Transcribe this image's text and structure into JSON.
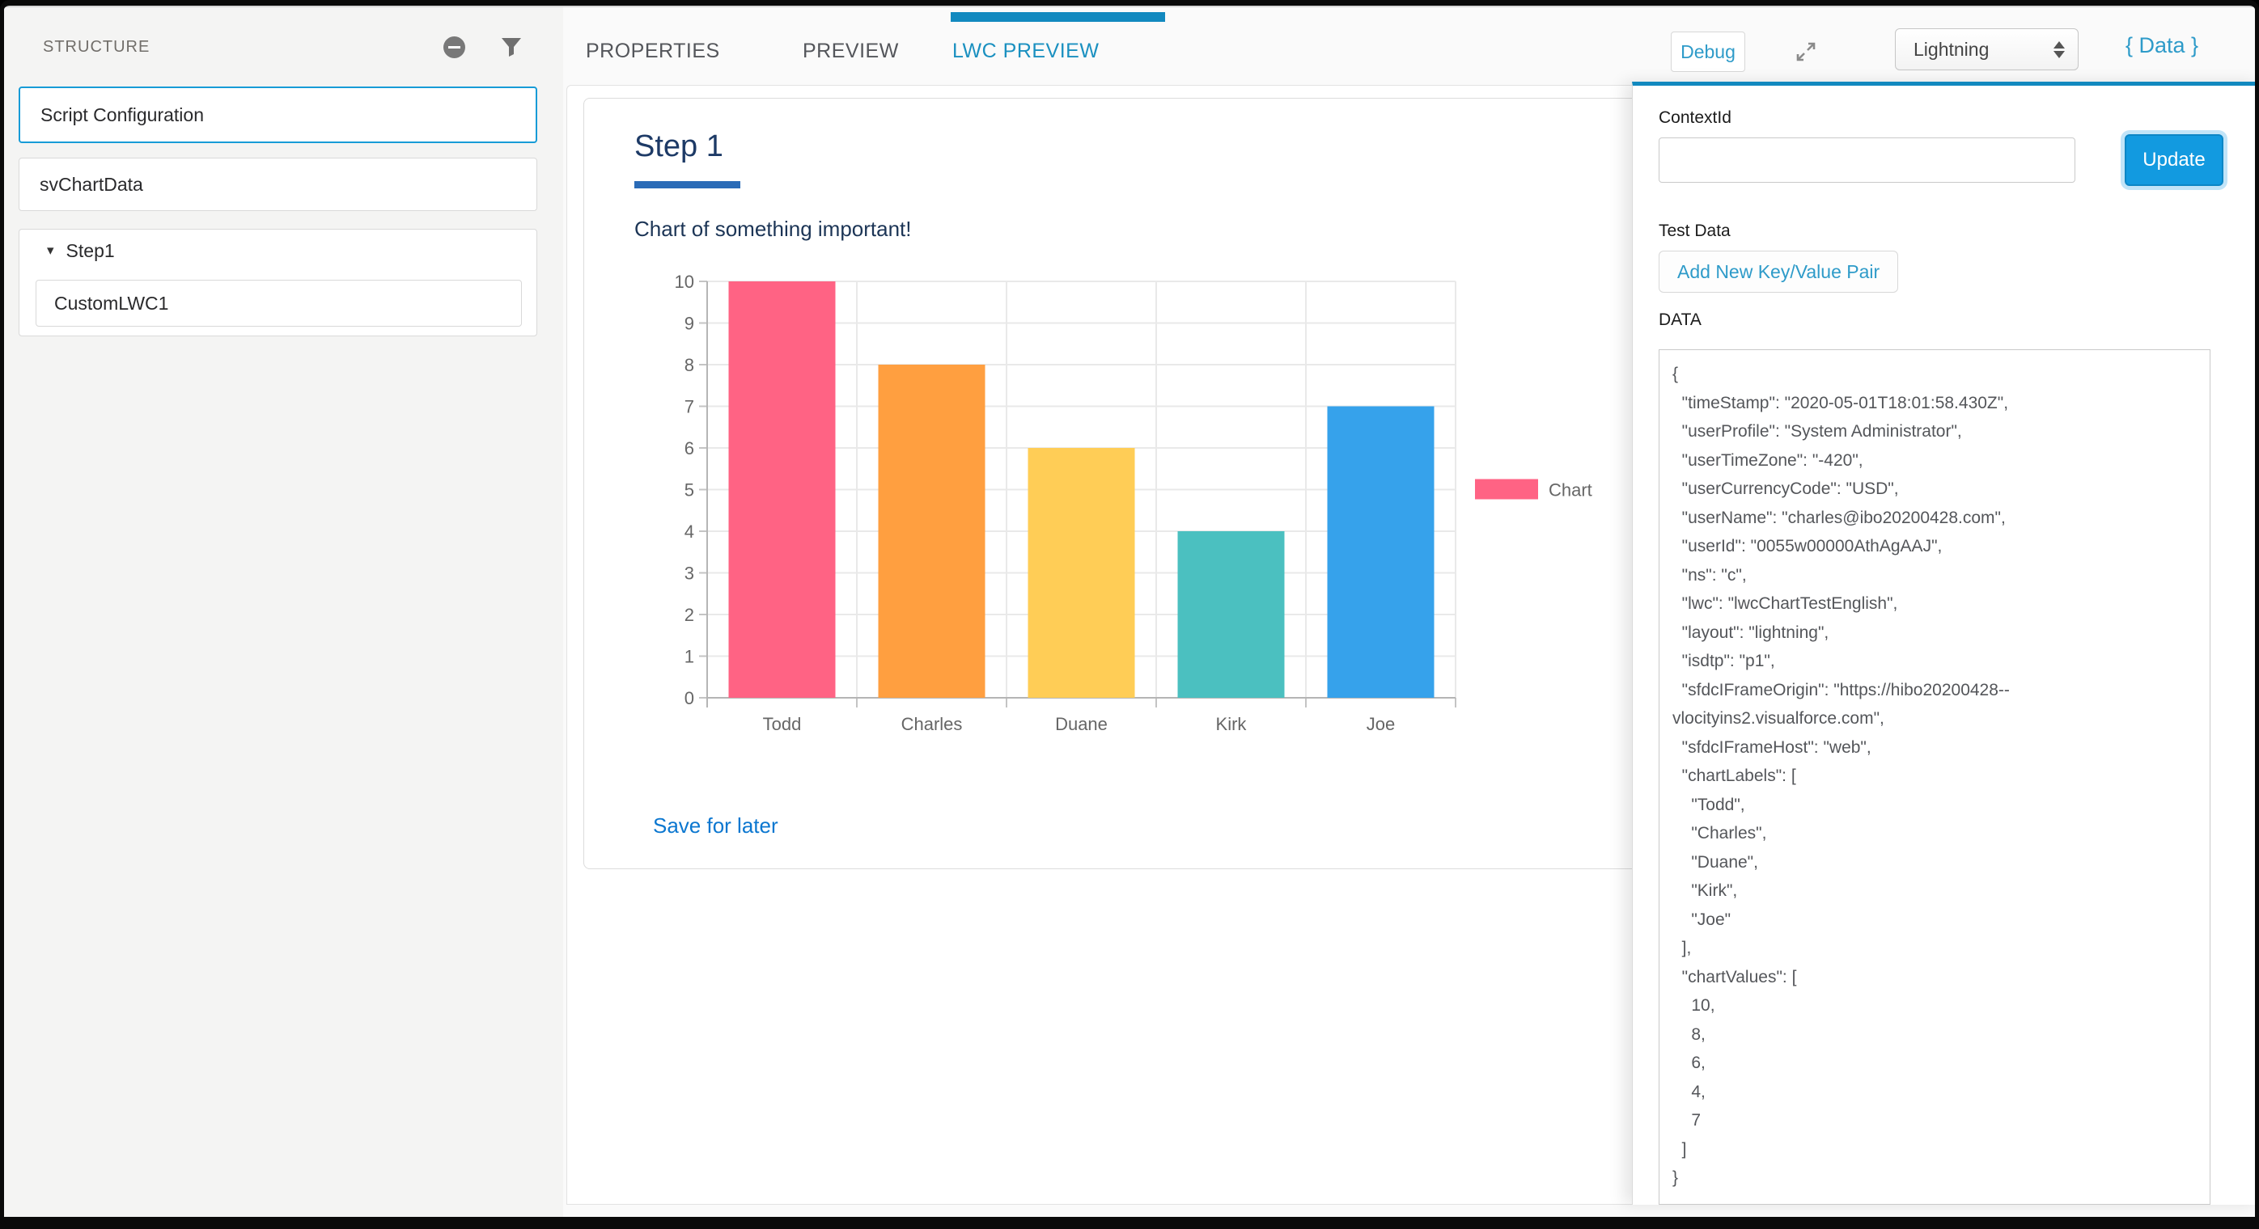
{
  "ui_colors": {
    "accent": "#1289bf",
    "accent-text": "#1a90c0"
  },
  "sidebar": {
    "title": "STRUCTURE",
    "items": [
      {
        "label": "Script Configuration",
        "selected": true
      },
      {
        "label": "svChartData",
        "selected": false
      }
    ],
    "group": {
      "label": "Step1",
      "children": [
        {
          "label": "CustomLWC1"
        }
      ]
    }
  },
  "tabs": [
    {
      "label": "PROPERTIES",
      "active": false
    },
    {
      "label": "PREVIEW",
      "active": false
    },
    {
      "label": "LWC PREVIEW",
      "active": true
    }
  ],
  "header": {
    "debug_label": "Debug",
    "layout_selected": "Lightning",
    "data_link_label": "{ Data }"
  },
  "canvas": {
    "step_title": "Step 1",
    "chart_caption": "Chart of something important!",
    "save_link": "Save for later"
  },
  "panel": {
    "context_id_label": "ContextId",
    "context_id_value": "",
    "update_label": "Update",
    "test_data_label": "Test Data",
    "add_pair_label": "Add New Key/Value Pair",
    "data_label": "DATA",
    "json_lines": [
      "{",
      "  \"timeStamp\": \"2020-05-01T18:01:58.430Z\",",
      "  \"userProfile\": \"System Administrator\",",
      "  \"userTimeZone\": \"-420\",",
      "  \"userCurrencyCode\": \"USD\",",
      "  \"userName\": \"charles@ibo20200428.com\",",
      "  \"userId\": \"0055w00000AthAgAAJ\",",
      "  \"ns\": \"c\",",
      "  \"lwc\": \"lwcChartTestEnglish\",",
      "  \"layout\": \"lightning\",",
      "  \"isdtp\": \"p1\",",
      "  \"sfdcIFrameOrigin\": \"https://hibo20200428--",
      "vlocityins2.visualforce.com\",",
      "  \"sfdcIFrameHost\": \"web\",",
      "  \"chartLabels\": [",
      "    \"Todd\",",
      "    \"Charles\",",
      "    \"Duane\",",
      "    \"Kirk\",",
      "    \"Joe\"",
      "  ],",
      "  \"chartValues\": [",
      "    10,",
      "    8,",
      "    6,",
      "    4,",
      "    7",
      "  ]",
      "}"
    ]
  },
  "chart_data": {
    "type": "bar",
    "title": "",
    "categories": [
      "Todd",
      "Charles",
      "Duane",
      "Kirk",
      "Joe"
    ],
    "values": [
      10,
      8,
      6,
      4,
      7
    ],
    "bar_colors": [
      "#FF6384",
      "#FF9F40",
      "#FFCD56",
      "#4BC0C0",
      "#36A2EB"
    ],
    "series_name": "Chart",
    "legend_color": "#FF6384",
    "legend_position": "right",
    "xlabel": "",
    "ylabel": "",
    "ylim": [
      0,
      10
    ],
    "ytick_step": 1,
    "grid": true
  }
}
